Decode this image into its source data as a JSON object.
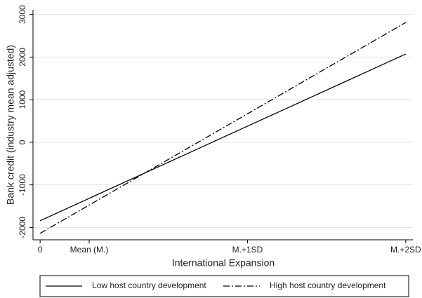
{
  "chart_data": {
    "type": "line",
    "x_label": "International Expansion",
    "y_label": "Bank credit (industry mean adjusted)",
    "x": [
      0,
      2.31
    ],
    "series": [
      {
        "name": "Low host country development",
        "color": "#000000",
        "style": "solid",
        "values": [
          -1842,
          2072
        ]
      },
      {
        "name": "High host country development",
        "color": "#000000",
        "style": "dashdot",
        "values": [
          -2138,
          2812
        ]
      }
    ],
    "xlim": [
      -0.045,
      2.355
    ],
    "xticks": [
      0,
      {
        "value": 0.31,
        "label": "Mean (M.)"
      },
      {
        "value": 1.31,
        "label": "M.+1SD"
      },
      {
        "value": 2.31,
        "label": "M.+2SD"
      }
    ],
    "ylim": [
      -2290,
      3110
    ],
    "yticks": [
      -2000,
      -1000,
      0,
      1000,
      2000,
      3000
    ],
    "grid": true
  }
}
